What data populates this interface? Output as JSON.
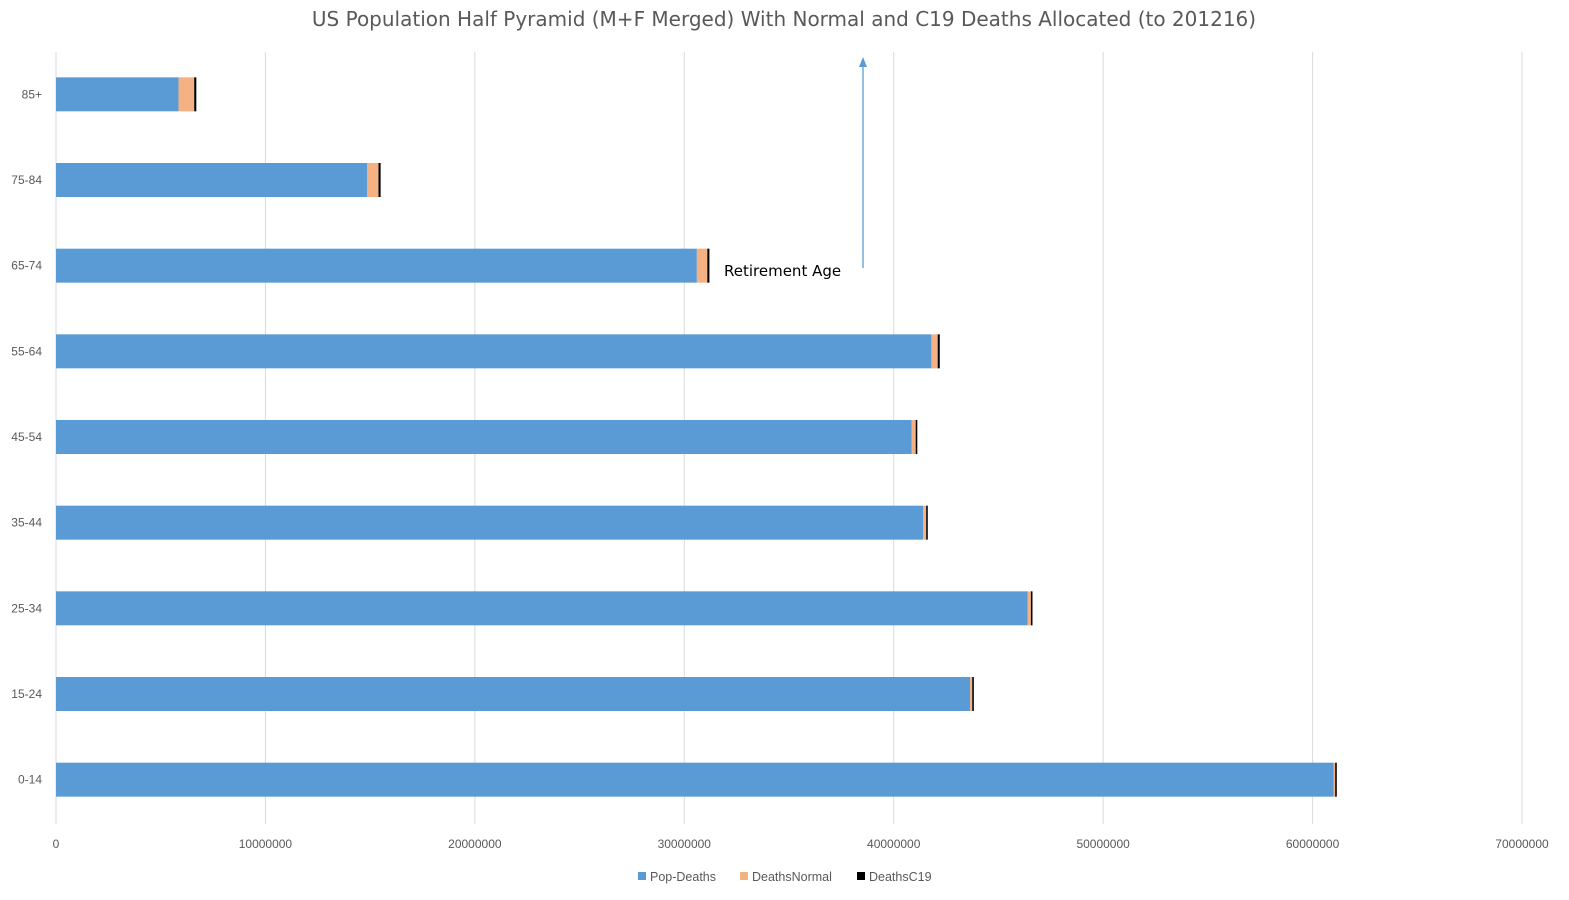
{
  "chart_data": {
    "type": "bar",
    "orientation": "horizontal",
    "stacked": true,
    "title": "US Population Half Pyramid (M+F Merged) With Normal and C19 Deaths Allocated (to 201216)",
    "categories": [
      "0-14",
      "15-24",
      "25-34",
      "35-44",
      "45-54",
      "55-64",
      "65-74",
      "75-84",
      "85+"
    ],
    "series": [
      {
        "name": "Pop-Deaths",
        "color": "#5b9bd5",
        "values": [
          61000000,
          43650000,
          46400000,
          41400000,
          40850000,
          41800000,
          30600000,
          14850000,
          5850000
        ]
      },
      {
        "name": "DeathsNormal",
        "color": "#f4b183",
        "values": [
          80000,
          100000,
          150000,
          150000,
          200000,
          300000,
          500000,
          550000,
          750000
        ]
      },
      {
        "name": "DeathsC19",
        "color": "#000000",
        "values": [
          10000,
          10000,
          20000,
          30000,
          50000,
          100000,
          100000,
          100000,
          100000
        ]
      }
    ],
    "x_ticks": [
      "0",
      "10000000",
      "20000000",
      "30000000",
      "40000000",
      "50000000",
      "60000000",
      "70000000"
    ],
    "xlim": [
      0,
      70000000
    ],
    "grid": "vertical",
    "legend_position": "bottom",
    "annotations": [
      {
        "text": "Retirement Age",
        "arrow": "up",
        "category": "65-74"
      }
    ]
  }
}
